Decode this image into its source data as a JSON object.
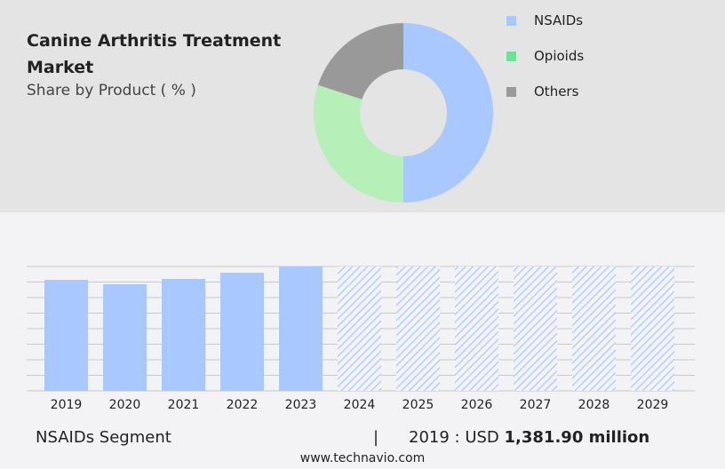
{
  "title": "Canine Arthritis Treatment Market",
  "subtitle": "Share by Product ( % )",
  "chart_data": [
    {
      "type": "pie",
      "donut": true,
      "categories": [
        "NSAIDs",
        "Opioids",
        "Others"
      ],
      "values": [
        50,
        30,
        20
      ],
      "colors": [
        "#a8c8ff",
        "#b7efb9",
        "#999999"
      ],
      "legend_colors": [
        "#a8c8ff",
        "#6ee09a",
        "#999999"
      ],
      "legend": "right"
    },
    {
      "type": "bar",
      "categories": [
        "2019",
        "2020",
        "2021",
        "2022",
        "2023",
        "2024",
        "2025",
        "2026",
        "2027",
        "2028",
        "2029"
      ],
      "values": [
        1381.9,
        1327,
        1393,
        1470,
        1548,
        null,
        null,
        null,
        null,
        null,
        null
      ],
      "forecast": [
        "2024",
        "2025",
        "2026",
        "2027",
        "2028",
        "2029"
      ],
      "grid": true,
      "color": "#a8c8ff",
      "ylim": [
        0,
        1548
      ]
    }
  ],
  "footer": {
    "segment": "NSAIDs Segment",
    "sep": "|",
    "year_label": "2019 : USD",
    "value": "1,381.90 million"
  },
  "site": "www.technavio.com"
}
